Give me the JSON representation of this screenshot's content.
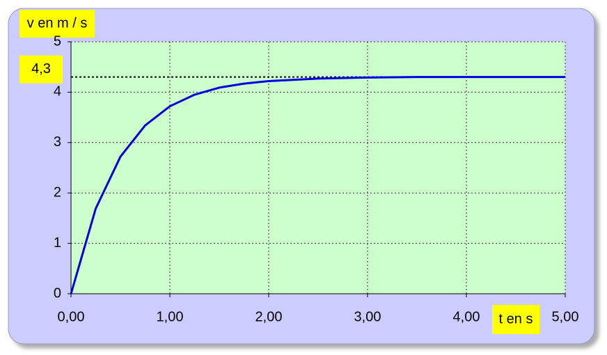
{
  "chart_data": {
    "type": "line",
    "y_label": "v en m / s",
    "x_label": "t en s",
    "x": [
      0,
      0.25,
      0.5,
      0.75,
      1.0,
      1.25,
      1.5,
      1.75,
      2.0,
      2.5,
      3.0,
      3.5,
      4.0,
      4.5,
      5.0
    ],
    "values": [
      0,
      1.69,
      2.72,
      3.34,
      3.72,
      3.95,
      4.09,
      4.17,
      4.22,
      4.27,
      4.29,
      4.3,
      4.3,
      4.3,
      4.3
    ],
    "color": "#0000e0",
    "xlim": [
      0,
      5
    ],
    "xticks": [
      {
        "value": 0,
        "label": "0,00"
      },
      {
        "value": 1,
        "label": "1,00"
      },
      {
        "value": 2,
        "label": "2,00"
      },
      {
        "value": 3,
        "label": "3,00"
      },
      {
        "value": 4,
        "label": "4,00"
      },
      {
        "value": 5,
        "label": "5,00"
      }
    ],
    "ylim": [
      0,
      5
    ],
    "yticks": [
      0,
      1,
      2,
      3,
      4,
      5
    ],
    "grid": true,
    "asymptote": {
      "value": 4.3,
      "label": "4,3"
    }
  }
}
